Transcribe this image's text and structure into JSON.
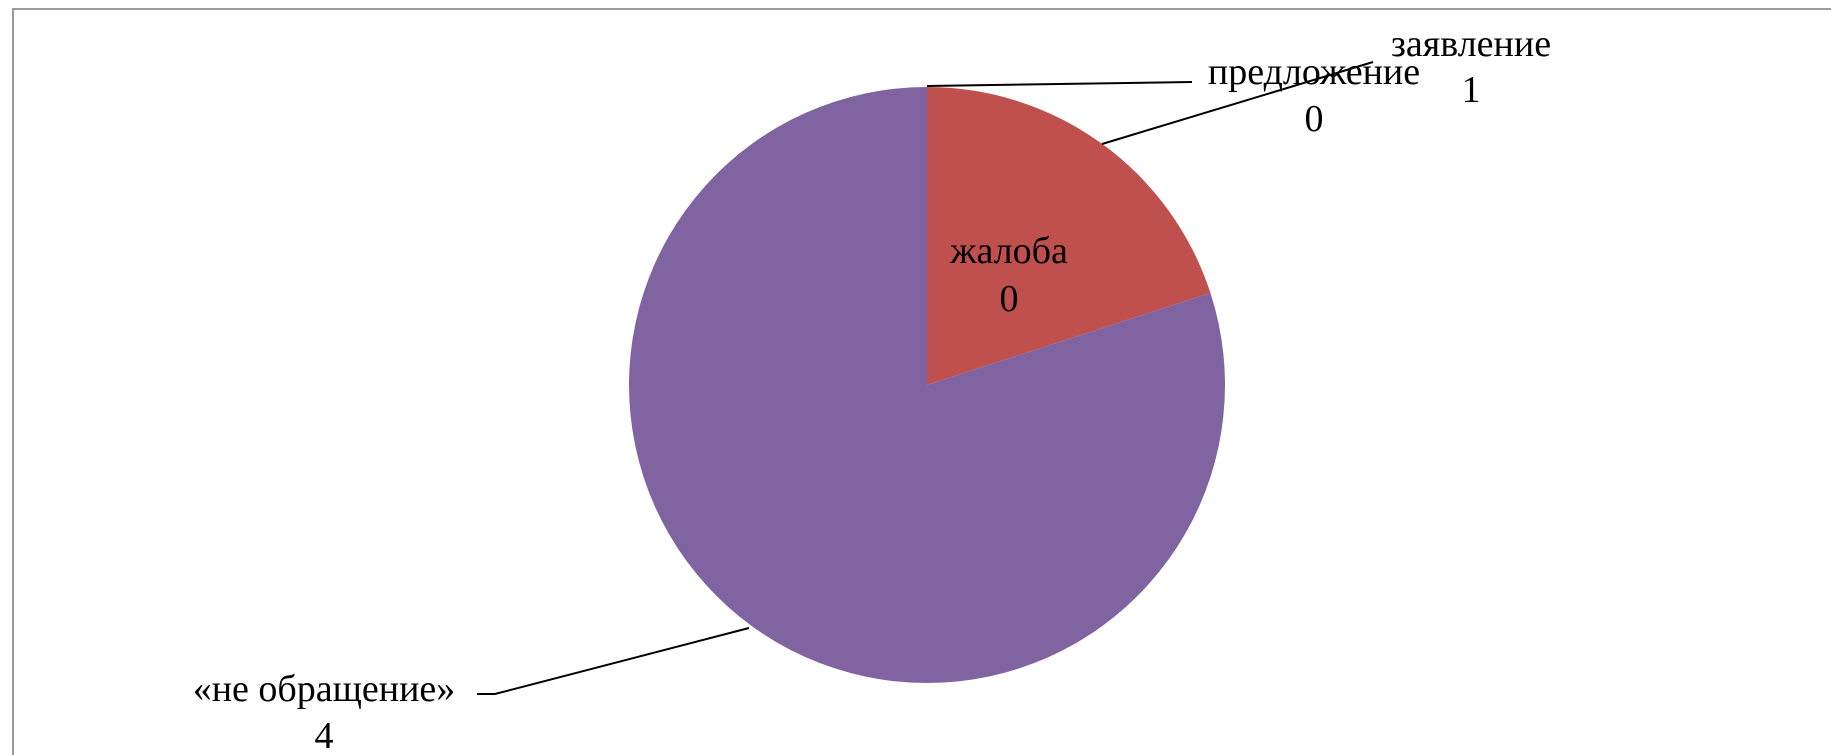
{
  "chart_data": {
    "type": "pie",
    "title": "",
    "slices": [
      {
        "label": "предложение",
        "value": 0,
        "color": "#4f81bd"
      },
      {
        "label": "заявление",
        "value": 1,
        "color": "#c0504d"
      },
      {
        "label": "жалоба",
        "value": 0,
        "color": "#9bbb59"
      },
      {
        "label": "«не обращение»",
        "value": 4,
        "color": "#8064a2"
      }
    ],
    "legend": "none",
    "data_labels": "category name and value"
  }
}
